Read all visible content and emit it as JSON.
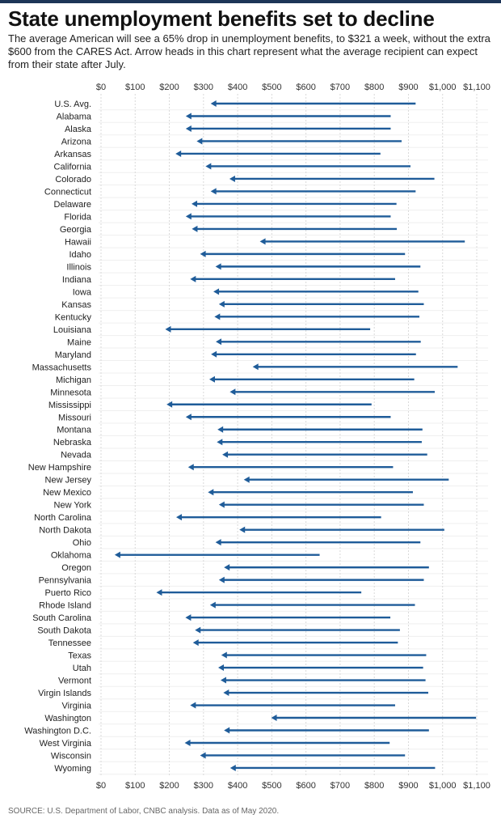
{
  "header": {
    "title": "State unemployment benefits set to decline",
    "subtitle": "The average American will see a 65% drop in unemployment benefits, to $321 a week, without the extra $600 from the CARES Act. Arrow heads in this chart represent what the average recipient can expect from their state after July."
  },
  "footer": {
    "source": "SOURCE: U.S. Department of Labor, CNBC analysis. Data as of May 2020."
  },
  "colors": {
    "arrow": "#1f5c99",
    "grid": "#d9d9d9",
    "topbar": "#1d3557"
  },
  "chart_data": {
    "type": "arrow",
    "title": "State unemployment benefits set to decline",
    "xlim": [
      0,
      1100
    ],
    "ticks": [
      "$0",
      "$100",
      "$200",
      "$300",
      "$400",
      "$500",
      "$600",
      "$700",
      "$800",
      "$900",
      "$1,000",
      "$1,100"
    ],
    "tick_values": [
      0,
      100,
      200,
      300,
      400,
      500,
      600,
      700,
      800,
      900,
      1000,
      1100
    ],
    "grid": true,
    "series": [
      {
        "name": "With $600 CARES Act supplement (arrow start)",
        "values": [
          921,
          848,
          848,
          880,
          818,
          906,
          976,
          921,
          865,
          848,
          866,
          1065,
          890,
          935,
          861,
          929,
          945,
          932,
          788,
          936,
          922,
          1044,
          917,
          977,
          792,
          848,
          941,
          939,
          955,
          855,
          1018,
          913,
          945,
          820,
          1005,
          935,
          640,
          960,
          945,
          762,
          919,
          847,
          875,
          869,
          952,
          943,
          950,
          958,
          861,
          1098,
          960,
          845,
          890,
          978
        ]
      },
      {
        "name": "Without supplement (arrow head)",
        "values": [
          321,
          248,
          248,
          280,
          218,
          306,
          376,
          321,
          265,
          248,
          266,
          465,
          290,
          335,
          261,
          329,
          345,
          332,
          188,
          336,
          322,
          444,
          317,
          377,
          192,
          248,
          341,
          339,
          355,
          255,
          418,
          313,
          345,
          220,
          405,
          335,
          40,
          360,
          345,
          162,
          319,
          247,
          275,
          269,
          352,
          343,
          350,
          358,
          261,
          498,
          360,
          245,
          290,
          378
        ]
      }
    ],
    "categories": [
      "U.S. Avg.",
      "Alabama",
      "Alaska",
      "Arizona",
      "Arkansas",
      "California",
      "Colorado",
      "Connecticut",
      "Delaware",
      "Florida",
      "Georgia",
      "Hawaii",
      "Idaho",
      "Illinois",
      "Indiana",
      "Iowa",
      "Kansas",
      "Kentucky",
      "Louisiana",
      "Maine",
      "Maryland",
      "Massachusetts",
      "Michigan",
      "Minnesota",
      "Mississippi",
      "Missouri",
      "Montana",
      "Nebraska",
      "Nevada",
      "New Hampshire",
      "New Jersey",
      "New Mexico",
      "New York",
      "North Carolina",
      "North Dakota",
      "Ohio",
      "Oklahoma",
      "Oregon",
      "Pennsylvania",
      "Puerto Rico",
      "Rhode Island",
      "South Carolina",
      "South Dakota",
      "Tennessee",
      "Texas",
      "Utah",
      "Vermont",
      "Virgin Islands",
      "Virginia",
      "Washington",
      "Washington D.C.",
      "West Virginia",
      "Wisconsin",
      "Wyoming"
    ]
  }
}
